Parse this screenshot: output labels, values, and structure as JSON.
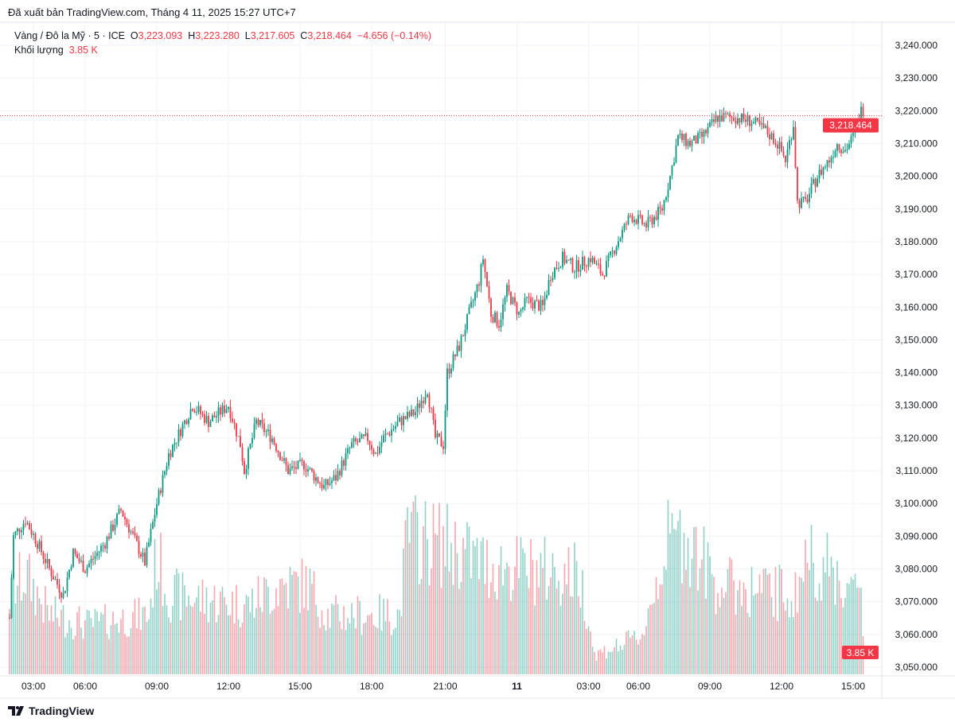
{
  "header": {
    "published": "Đã xuất bản TradingView.com, Tháng 4 11, 2025 15:27 UTC+7"
  },
  "legend": {
    "symbol": "Vàng / Đô la Mỹ · 5 · ICE",
    "o_label": "O",
    "o": "3,223.093",
    "h_label": "H",
    "h": "3,223.280",
    "l_label": "L",
    "l": "3,217.605",
    "c_label": "C",
    "c": "3,218.464",
    "change": "−4.656 (−0.14%)",
    "volume_label": "Khối lượng",
    "volume": "3.85 K"
  },
  "footer": {
    "logo": "TradingView"
  },
  "colors": {
    "up": "#089981",
    "down": "#F23645"
  },
  "chart_data": {
    "type": "candlestick",
    "title": "Vàng / Đô la Mỹ · 5 · ICE",
    "ylim": [
      3045,
      3245
    ],
    "y_ticks": [
      "3,050.000",
      "3,060.000",
      "3,070.000",
      "3,080.000",
      "3,090.000",
      "3,100.000",
      "3,110.000",
      "3,120.000",
      "3,130.000",
      "3,140.000",
      "3,150.000",
      "3,160.000",
      "3,170.000",
      "3,180.000",
      "3,190.000",
      "3,200.000",
      "3,210.000",
      "3,220.000",
      "3,230.000",
      "3,240.000"
    ],
    "y_tick_values": [
      3050,
      3060,
      3070,
      3080,
      3090,
      3100,
      3110,
      3120,
      3130,
      3140,
      3150,
      3160,
      3170,
      3180,
      3190,
      3200,
      3210,
      3220,
      3230,
      3240
    ],
    "x_ticks": [
      {
        "bar": 12,
        "label": "03:00"
      },
      {
        "bar": 38,
        "label": "06:00"
      },
      {
        "bar": 74,
        "label": "09:00"
      },
      {
        "bar": 110,
        "label": "12:00"
      },
      {
        "bar": 146,
        "label": "15:00"
      },
      {
        "bar": 182,
        "label": "18:00"
      },
      {
        "bar": 219,
        "label": "21:00"
      },
      {
        "bar": 255,
        "label": "11"
      },
      {
        "bar": 291,
        "label": "03:00"
      },
      {
        "bar": 316,
        "label": "06:00"
      },
      {
        "bar": 352,
        "label": "09:00"
      },
      {
        "bar": 388,
        "label": "12:00"
      },
      {
        "bar": 424,
        "label": "15:00"
      }
    ],
    "bar_count": 430,
    "price_path": [
      [
        0,
        3065
      ],
      [
        2,
        3090
      ],
      [
        8,
        3095
      ],
      [
        14,
        3088
      ],
      [
        20,
        3080
      ],
      [
        27,
        3072
      ],
      [
        32,
        3085
      ],
      [
        38,
        3080
      ],
      [
        48,
        3088
      ],
      [
        56,
        3098
      ],
      [
        62,
        3090
      ],
      [
        68,
        3082
      ],
      [
        74,
        3100
      ],
      [
        80,
        3115
      ],
      [
        88,
        3125
      ],
      [
        92,
        3130
      ],
      [
        100,
        3125
      ],
      [
        110,
        3130
      ],
      [
        116,
        3118
      ],
      [
        118,
        3110
      ],
      [
        124,
        3125
      ],
      [
        132,
        3120
      ],
      [
        140,
        3110
      ],
      [
        148,
        3112
      ],
      [
        158,
        3105
      ],
      [
        164,
        3108
      ],
      [
        172,
        3118
      ],
      [
        180,
        3120
      ],
      [
        184,
        3115
      ],
      [
        188,
        3120
      ],
      [
        196,
        3125
      ],
      [
        204,
        3128
      ],
      [
        210,
        3135
      ],
      [
        214,
        3120
      ],
      [
        218,
        3118
      ],
      [
        220,
        3140
      ],
      [
        226,
        3148
      ],
      [
        232,
        3160
      ],
      [
        236,
        3168
      ],
      [
        238,
        3175
      ],
      [
        242,
        3158
      ],
      [
        246,
        3155
      ],
      [
        250,
        3165
      ],
      [
        256,
        3158
      ],
      [
        260,
        3162
      ],
      [
        268,
        3160
      ],
      [
        272,
        3170
      ],
      [
        278,
        3175
      ],
      [
        284,
        3172
      ],
      [
        292,
        3175
      ],
      [
        298,
        3170
      ],
      [
        304,
        3178
      ],
      [
        312,
        3188
      ],
      [
        320,
        3185
      ],
      [
        328,
        3190
      ],
      [
        332,
        3200
      ],
      [
        336,
        3212
      ],
      [
        342,
        3210
      ],
      [
        348,
        3212
      ],
      [
        356,
        3218
      ],
      [
        364,
        3218
      ],
      [
        372,
        3217
      ],
      [
        380,
        3214
      ],
      [
        386,
        3210
      ],
      [
        390,
        3205
      ],
      [
        394,
        3216
      ],
      [
        396,
        3192
      ],
      [
        400,
        3192
      ],
      [
        406,
        3200
      ],
      [
        412,
        3205
      ],
      [
        416,
        3210
      ],
      [
        420,
        3208
      ],
      [
        424,
        3212
      ],
      [
        428,
        3220
      ],
      [
        429,
        3218.464
      ]
    ],
    "volume_path_k": [
      [
        0,
        8
      ],
      [
        8,
        10
      ],
      [
        20,
        6
      ],
      [
        40,
        5
      ],
      [
        70,
        6
      ],
      [
        74,
        12
      ],
      [
        80,
        8
      ],
      [
        120,
        7
      ],
      [
        136,
        9
      ],
      [
        150,
        9
      ],
      [
        160,
        6
      ],
      [
        196,
        6
      ],
      [
        200,
        14
      ],
      [
        220,
        13
      ],
      [
        240,
        11
      ],
      [
        286,
        10
      ],
      [
        290,
        7
      ],
      [
        294,
        2
      ],
      [
        308,
        3
      ],
      [
        318,
        4
      ],
      [
        330,
        13
      ],
      [
        340,
        14
      ],
      [
        356,
        9
      ],
      [
        396,
        8
      ],
      [
        400,
        12
      ],
      [
        416,
        10
      ],
      [
        424,
        8
      ],
      [
        428,
        9
      ],
      [
        429,
        3.85
      ]
    ],
    "last_price": "3,218.464",
    "last_volume": "3.85 K"
  }
}
